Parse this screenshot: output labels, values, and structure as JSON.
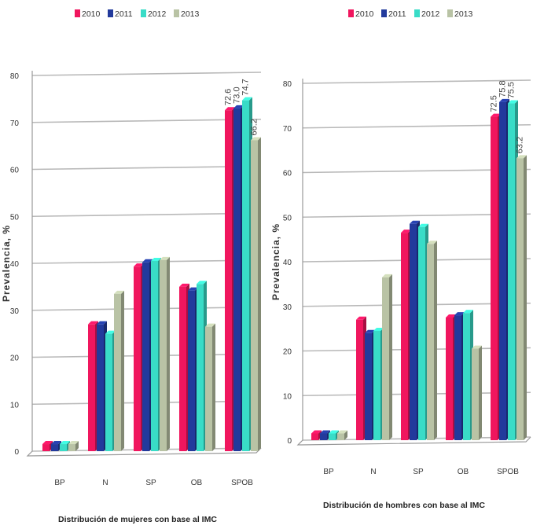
{
  "colors": {
    "2010": "#f0165e",
    "2011": "#223a9c",
    "2012": "#39dcc7",
    "2013": "#b9c3a5"
  },
  "chart_data": [
    {
      "type": "bar",
      "categories": [
        "BP",
        "N",
        "SP",
        "OB",
        "SPOB"
      ],
      "series": [
        {
          "name": "2010",
          "values": [
            1.5,
            27,
            39.3,
            35,
            72.6
          ]
        },
        {
          "name": "2011",
          "values": [
            1.5,
            27,
            40.2,
            34.2,
            73.0
          ]
        },
        {
          "name": "2012",
          "values": [
            1.5,
            25,
            40.5,
            35.6,
            74.7
          ]
        },
        {
          "name": "2013",
          "values": [
            1.5,
            33.5,
            40.7,
            26.5,
            66.2
          ]
        }
      ],
      "data_labels": {
        "SPOB": [
          "72.6",
          "73.0",
          "74.7",
          "66.2"
        ]
      },
      "yticks": [
        "0",
        "10",
        "20",
        "30",
        "40",
        "50",
        "60",
        "70",
        "80"
      ],
      "ylim": [
        0,
        80
      ],
      "xlabel": "Distribución de mujeres con base al IMC",
      "ylabel": "Prevalencia, %",
      "legend": [
        "2010",
        "2011",
        "2012",
        "2013"
      ],
      "legend_position": "top",
      "grid": true
    },
    {
      "type": "bar",
      "categories": [
        "BP",
        "N",
        "SP",
        "OB",
        "SPOB"
      ],
      "series": [
        {
          "name": "2010",
          "values": [
            1.5,
            27,
            46.5,
            27.5,
            72.5
          ]
        },
        {
          "name": "2011",
          "values": [
            1.5,
            24,
            48.5,
            28,
            75.8
          ]
        },
        {
          "name": "2012",
          "values": [
            1.5,
            24.5,
            47.8,
            28.5,
            75.5
          ]
        },
        {
          "name": "2013",
          "values": [
            1.5,
            36.5,
            44,
            20.5,
            63.2
          ]
        }
      ],
      "data_labels": {
        "SPOB": [
          "72.5",
          "75.8",
          "75.5",
          "63.2"
        ]
      },
      "yticks": [
        "0",
        "10",
        "20",
        "30",
        "40",
        "50",
        "60",
        "70",
        "80"
      ],
      "ylim": [
        0,
        80
      ],
      "xlabel": "Distribución de hombres con base al IMC",
      "ylabel": "Prevalencia, %",
      "legend": [
        "2010",
        "2011",
        "2012",
        "2013"
      ],
      "legend_position": "top",
      "grid": true
    }
  ]
}
